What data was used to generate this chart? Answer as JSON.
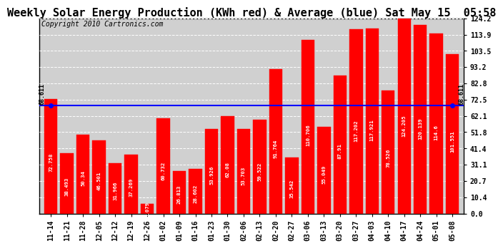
{
  "title": "Weekly Solar Energy Production (KWh red) & Average (blue) Sat May 15  05:58",
  "copyright": "Copyright 2010 Cartronics.com",
  "categories": [
    "11-14",
    "11-21",
    "11-28",
    "12-05",
    "12-12",
    "12-19",
    "12-26",
    "01-02",
    "01-09",
    "01-16",
    "01-23",
    "01-30",
    "02-06",
    "02-13",
    "02-20",
    "02-27",
    "03-06",
    "03-13",
    "03-20",
    "03-27",
    "04-03",
    "04-10",
    "04-17",
    "04-24",
    "05-01",
    "05-08"
  ],
  "values": [
    72.758,
    38.493,
    50.34,
    46.501,
    31.966,
    37.269,
    6.079,
    60.732,
    26.813,
    28.602,
    53.926,
    62.08,
    53.703,
    59.522,
    91.764,
    35.542,
    110.706,
    55.049,
    87.91,
    117.202,
    117.921,
    78.526,
    124.205,
    120.139,
    114.6,
    101.551
  ],
  "average": 68.611,
  "bar_color": "#ff0000",
  "avg_line_color": "#0000ff",
  "background_color": "#ffffff",
  "ylim": [
    0,
    124.2
  ],
  "yticks": [
    0.0,
    10.4,
    20.7,
    31.1,
    41.4,
    51.8,
    62.1,
    72.5,
    82.8,
    93.2,
    103.5,
    113.9,
    124.2
  ],
  "avg_label": "68.611",
  "title_fontsize": 11,
  "copyright_fontsize": 7,
  "tick_fontsize": 7,
  "value_fontsize": 5.2
}
